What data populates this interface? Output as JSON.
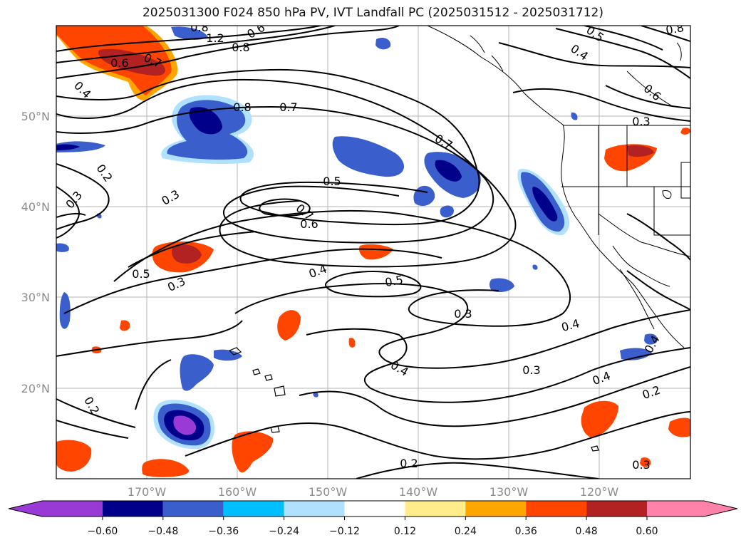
{
  "title": "2025031300 F024 850 hPa PV, IVT Landfall PC (2025031512 - 2025031712)",
  "map": {
    "lat_labels": [
      "50°N",
      "40°N",
      "30°N",
      "20°N"
    ],
    "lon_labels": [
      "170°W",
      "160°W",
      "150°W",
      "140°W",
      "130°W",
      "120°W"
    ],
    "contour_labels": [
      "1.2",
      "0.8",
      "0.5",
      "0.4",
      "0.6",
      "0.7",
      "0.4",
      "0.8",
      "0.7",
      "0.7",
      "0.5",
      "0.3",
      "0.2",
      "0.3",
      "0.6",
      "0.7",
      "0.8",
      "0.6",
      "0.5",
      "0.3",
      "0.4",
      "0.5",
      "0.3",
      "0.4",
      "0.4",
      "0.3",
      "0.2",
      "0.2",
      "0.4",
      "0.2",
      "0.3",
      "0.3",
      "0.4",
      "0.8",
      "0.6"
    ]
  },
  "colorbar": {
    "ticks": [
      "−0.60",
      "−0.48",
      "−0.36",
      "−0.24",
      "−0.12",
      "0.12",
      "0.24",
      "0.36",
      "0.48",
      "0.60"
    ],
    "colors": [
      "#9a3ad6",
      "#00008b",
      "#3a5fcd",
      "#00bfff",
      "#b0e2ff",
      "#ffffff",
      "#ffec8b",
      "#ffa500",
      "#ff4500",
      "#b22222",
      "#ff82ab"
    ]
  }
}
